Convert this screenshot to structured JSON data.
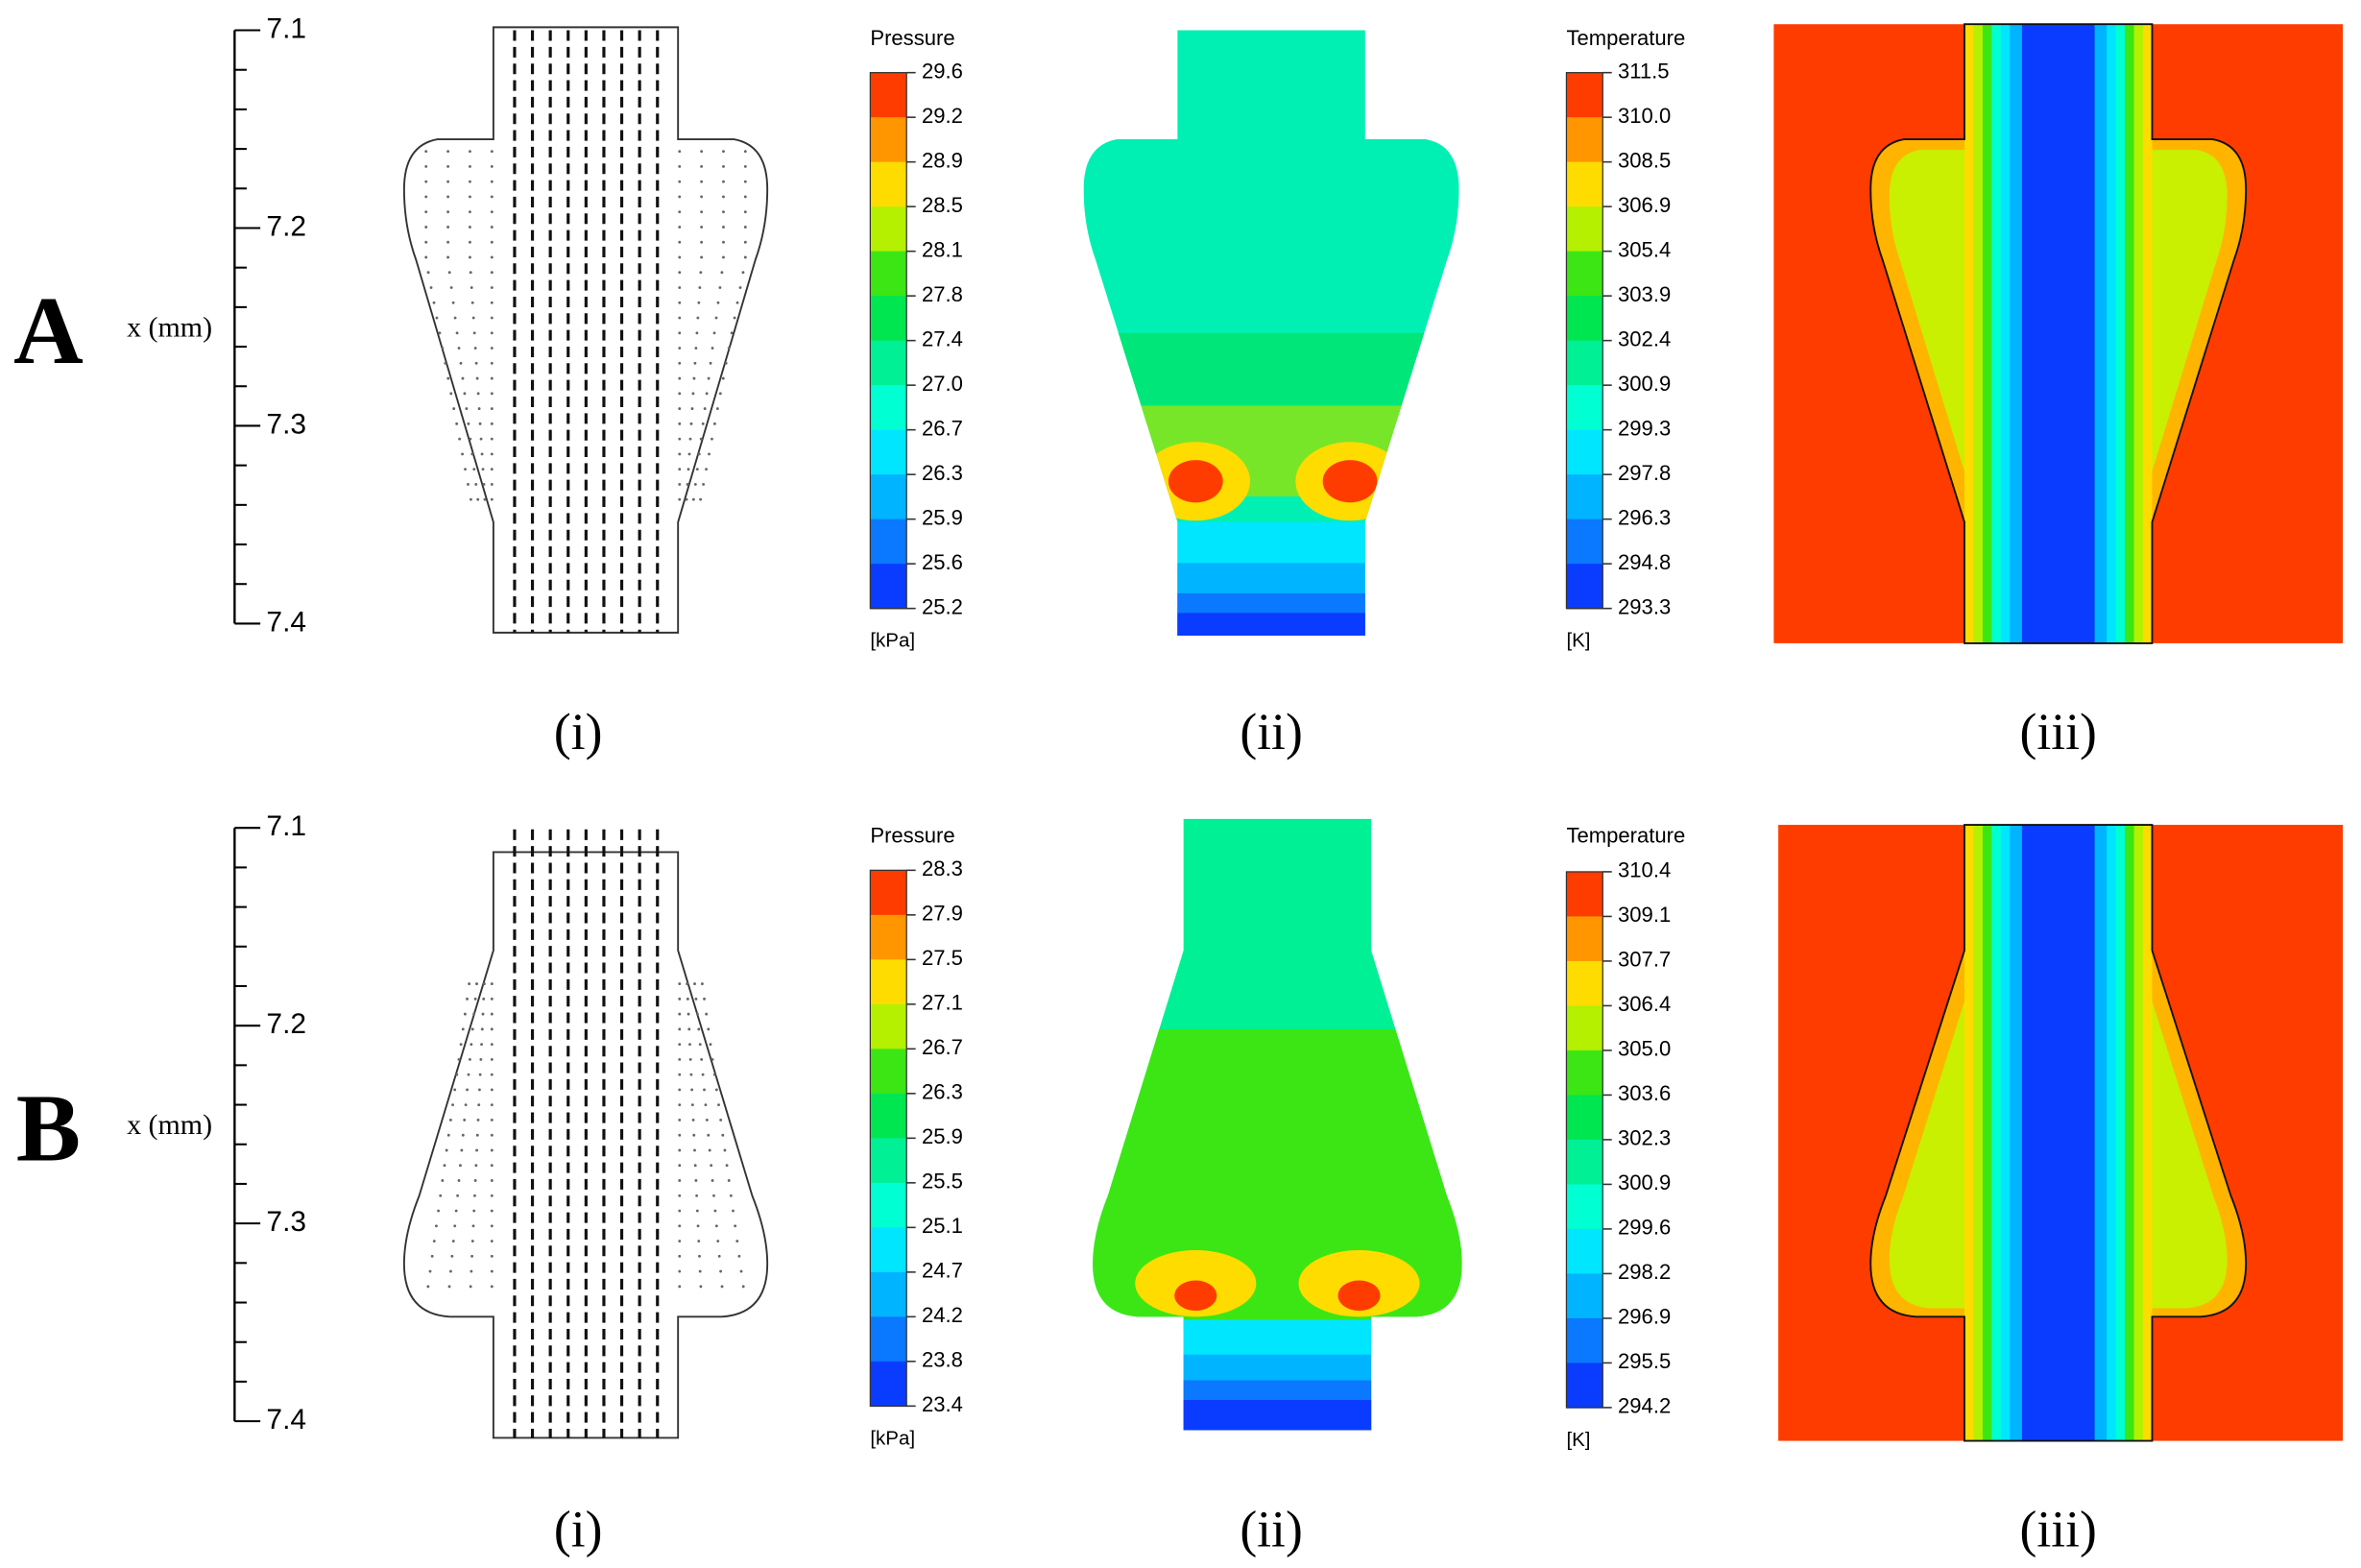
{
  "rows": [
    {
      "label": "A",
      "axis": {
        "label": "x (mm)",
        "ticks": [
          "7.1",
          "7.2",
          "7.3",
          "7.4"
        ]
      },
      "panels": [
        "(i)",
        "(ii)",
        "(iii)"
      ],
      "pressure": {
        "title": "Pressure",
        "levels": [
          "29.6",
          "29.2",
          "28.9",
          "28.5",
          "28.1",
          "27.8",
          "27.4",
          "27.0",
          "26.7",
          "26.3",
          "25.9",
          "25.6",
          "25.2"
        ],
        "unit": "[kPa]"
      },
      "temperature": {
        "title": "Temperature",
        "levels": [
          "311.5",
          "310.0",
          "308.5",
          "306.9",
          "305.4",
          "303.9",
          "302.4",
          "300.9",
          "299.3",
          "297.8",
          "296.3",
          "294.8",
          "293.3"
        ],
        "unit": "[K]"
      }
    },
    {
      "label": "B",
      "axis": {
        "label": "x (mm)",
        "ticks": [
          "7.1",
          "7.2",
          "7.3",
          "7.4"
        ]
      },
      "panels": [
        "(i)",
        "(ii)",
        "(iii)"
      ],
      "pressure": {
        "title": "Pressure",
        "levels": [
          "28.3",
          "27.9",
          "27.5",
          "27.1",
          "26.7",
          "26.3",
          "25.9",
          "25.5",
          "25.1",
          "24.7",
          "24.2",
          "23.8",
          "23.4"
        ],
        "unit": "[kPa]"
      },
      "temperature": {
        "title": "Temperature",
        "levels": [
          "310.4",
          "309.1",
          "307.7",
          "306.4",
          "305.0",
          "303.6",
          "302.3",
          "300.9",
          "299.6",
          "298.2",
          "296.9",
          "295.5",
          "294.2"
        ],
        "unit": "[K]"
      }
    }
  ]
}
